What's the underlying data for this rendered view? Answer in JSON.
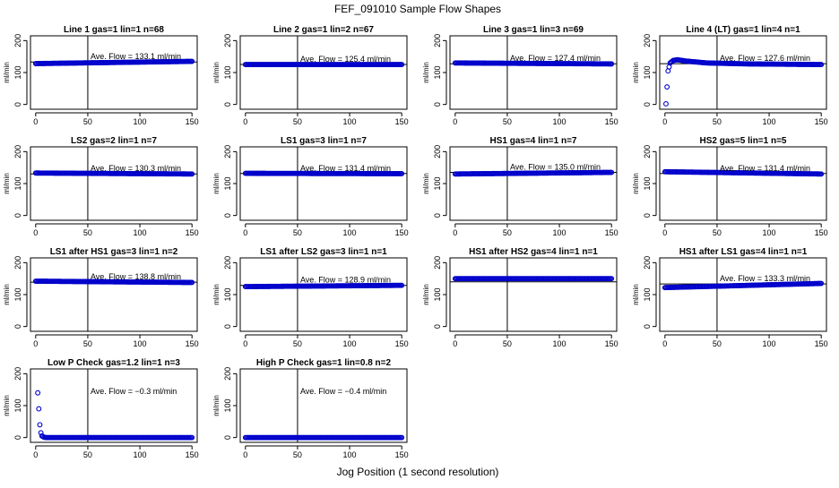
{
  "figure": {
    "title": "FEF_091010  Sample Flow Shapes",
    "xlabel": "Jog Position (1 second resolution)"
  },
  "chart_data": [
    {
      "type": "scatter",
      "title": "Line 1 gas=1 lin=1 n=68",
      "ylabel": "ml/min",
      "xlim": [
        0,
        150
      ],
      "ylim": [
        0,
        200
      ],
      "xticks": [
        0,
        50,
        100,
        150
      ],
      "yticks": [
        0,
        100,
        200
      ],
      "annotation": "Ave. Flow =  133.1  ml/min",
      "vline": 50,
      "hline": 133.1,
      "series": [
        {
          "x": [
            0,
            150
          ],
          "y": [
            128,
            135
          ]
        }
      ]
    },
    {
      "type": "scatter",
      "title": "Line 2 gas=1 lin=2 n=67",
      "ylabel": "ml/min",
      "xlim": [
        0,
        150
      ],
      "ylim": [
        0,
        200
      ],
      "xticks": [
        0,
        50,
        100,
        150
      ],
      "yticks": [
        0,
        100,
        200
      ],
      "annotation": "Ave. Flow =  125.4  ml/min",
      "vline": 50,
      "hline": 125.4,
      "series": [
        {
          "x": [
            0,
            150
          ],
          "y": [
            125,
            125
          ]
        }
      ]
    },
    {
      "type": "scatter",
      "title": "Line 3 gas=1 lin=3 n=69",
      "ylabel": "ml/min",
      "xlim": [
        0,
        150
      ],
      "ylim": [
        0,
        200
      ],
      "xticks": [
        0,
        50,
        100,
        150
      ],
      "yticks": [
        0,
        100,
        200
      ],
      "annotation": "Ave. Flow =  127.4  ml/min",
      "vline": 50,
      "hline": 127.4,
      "series": [
        {
          "x": [
            0,
            150
          ],
          "y": [
            130,
            127
          ]
        }
      ]
    },
    {
      "type": "scatter",
      "title": "Line 4 (LT) gas=1 lin=4 n=1",
      "ylabel": "ml/min",
      "xlim": [
        0,
        150
      ],
      "ylim": [
        0,
        200
      ],
      "xticks": [
        0,
        50,
        100,
        150
      ],
      "yticks": [
        0,
        100,
        200
      ],
      "annotation": "Ave. Flow =  127.6  ml/min",
      "vline": 50,
      "hline": 127.6,
      "series": [
        {
          "x": [
            1,
            2,
            3,
            5,
            8,
            12,
            20,
            40,
            80,
            150
          ],
          "y": [
            2,
            55,
            105,
            130,
            138,
            140,
            136,
            130,
            127,
            125
          ]
        }
      ]
    },
    {
      "type": "scatter",
      "title": "LS2 gas=2 lin=1 n=7",
      "ylabel": "ml/min",
      "xlim": [
        0,
        150
      ],
      "ylim": [
        0,
        200
      ],
      "xticks": [
        0,
        50,
        100,
        150
      ],
      "yticks": [
        0,
        100,
        200
      ],
      "annotation": "Ave. Flow =  130.3  ml/min",
      "vline": 50,
      "hline": 130.3,
      "series": [
        {
          "x": [
            0,
            150
          ],
          "y": [
            133,
            130
          ]
        }
      ]
    },
    {
      "type": "scatter",
      "title": "LS1 gas=3 lin=1 n=7",
      "ylabel": "ml/min",
      "xlim": [
        0,
        150
      ],
      "ylim": [
        0,
        200
      ],
      "xticks": [
        0,
        50,
        100,
        150
      ],
      "yticks": [
        0,
        100,
        200
      ],
      "annotation": "Ave. Flow =  131.4  ml/min",
      "vline": 50,
      "hline": 131.4,
      "series": [
        {
          "x": [
            0,
            150
          ],
          "y": [
            132,
            131
          ]
        }
      ]
    },
    {
      "type": "scatter",
      "title": "HS1 gas=4 lin=1 n=7",
      "ylabel": "ml/min",
      "xlim": [
        0,
        150
      ],
      "ylim": [
        0,
        200
      ],
      "xticks": [
        0,
        50,
        100,
        150
      ],
      "yticks": [
        0,
        100,
        200
      ],
      "annotation": "Ave. Flow =  135.0  ml/min",
      "vline": 50,
      "hline": 135.0,
      "series": [
        {
          "x": [
            0,
            150
          ],
          "y": [
            130,
            135
          ]
        }
      ]
    },
    {
      "type": "scatter",
      "title": "HS2 gas=5 lin=1 n=5",
      "ylabel": "ml/min",
      "xlim": [
        0,
        150
      ],
      "ylim": [
        0,
        200
      ],
      "xticks": [
        0,
        50,
        100,
        150
      ],
      "yticks": [
        0,
        100,
        200
      ],
      "annotation": "Ave. Flow =  131.4  ml/min",
      "vline": 50,
      "hline": 131.4,
      "series": [
        {
          "x": [
            0,
            150
          ],
          "y": [
            137,
            130
          ]
        }
      ]
    },
    {
      "type": "scatter",
      "title": "LS1 after HS1 gas=3 lin=1 n=2",
      "ylabel": "ml/min",
      "xlim": [
        0,
        150
      ],
      "ylim": [
        0,
        200
      ],
      "xticks": [
        0,
        50,
        100,
        150
      ],
      "yticks": [
        0,
        100,
        200
      ],
      "annotation": "Ave. Flow =  138.8  ml/min",
      "vline": 50,
      "hline": 138.8,
      "series": [
        {
          "x": [
            0,
            150
          ],
          "y": [
            142,
            138
          ]
        }
      ]
    },
    {
      "type": "scatter",
      "title": "LS1 after LS2 gas=3 lin=1 n=1",
      "ylabel": "ml/min",
      "xlim": [
        0,
        150
      ],
      "ylim": [
        0,
        200
      ],
      "xticks": [
        0,
        50,
        100,
        150
      ],
      "yticks": [
        0,
        100,
        200
      ],
      "annotation": "Ave. Flow =  128.9  ml/min",
      "vline": 50,
      "hline": 128.9,
      "series": [
        {
          "x": [
            0,
            150
          ],
          "y": [
            125,
            129
          ]
        }
      ]
    },
    {
      "type": "scatter",
      "title": "HS1 after HS2 gas=4 lin=1 n=1",
      "ylabel": "ml/min",
      "xlim": [
        0,
        150
      ],
      "ylim": [
        0,
        200
      ],
      "xticks": [
        0,
        50,
        100,
        150
      ],
      "yticks": [
        0,
        100,
        200
      ],
      "annotation": "",
      "vline": 50,
      "hline": 140,
      "series": [
        {
          "x": [
            0,
            150
          ],
          "y": [
            150,
            150
          ]
        }
      ]
    },
    {
      "type": "scatter",
      "title": "HS1 after LS1 gas=4 lin=1 n=1",
      "ylabel": "ml/min",
      "xlim": [
        0,
        150
      ],
      "ylim": [
        0,
        200
      ],
      "xticks": [
        0,
        50,
        100,
        150
      ],
      "yticks": [
        0,
        100,
        200
      ],
      "annotation": "Ave. Flow =  133.3  ml/min",
      "vline": 50,
      "hline": 133.3,
      "series": [
        {
          "x": [
            0,
            150
          ],
          "y": [
            122,
            135
          ]
        }
      ]
    },
    {
      "type": "scatter",
      "title": "Low P Check gas=1.2 lin=1 n=3",
      "ylabel": "ml/min",
      "xlim": [
        0,
        150
      ],
      "ylim": [
        0,
        200
      ],
      "xticks": [
        0,
        50,
        100,
        150
      ],
      "yticks": [
        0,
        100,
        200
      ],
      "annotation": "Ave. Flow =  −0.3  ml/min",
      "vline": 50,
      "hline": null,
      "series": [
        {
          "x": [
            2,
            3,
            4,
            5,
            6,
            8,
            10,
            150
          ],
          "y": [
            140,
            90,
            40,
            15,
            5,
            1,
            0,
            0
          ]
        }
      ]
    },
    {
      "type": "scatter",
      "title": "High P Check gas=1 lin=0.8 n=2",
      "ylabel": "ml/min",
      "xlim": [
        0,
        150
      ],
      "ylim": [
        0,
        200
      ],
      "xticks": [
        0,
        50,
        100,
        150
      ],
      "yticks": [
        0,
        100,
        200
      ],
      "annotation": "Ave. Flow =  −0.4  ml/min",
      "vline": 50,
      "hline": null,
      "series": [
        {
          "x": [
            0,
            150
          ],
          "y": [
            0,
            0
          ]
        }
      ]
    }
  ]
}
